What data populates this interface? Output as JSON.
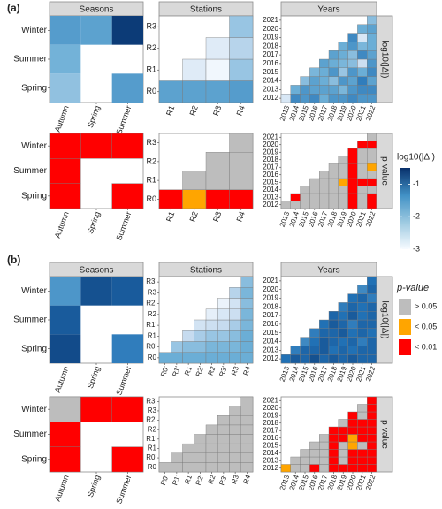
{
  "chart_data": {
    "type": "heatmap",
    "panel_labels": [
      "(a)",
      "(b)"
    ],
    "facet_titles": [
      "Seasons",
      "Stations",
      "Years"
    ],
    "strip_labels": [
      "log10(|Δ|)",
      "p-value"
    ],
    "legend_a": {
      "title": "log10(|Δ|)",
      "ticks": [
        "-1",
        "-2",
        "-3"
      ],
      "tick_values": [
        -1,
        -2,
        -3
      ],
      "range": [
        -3,
        -0.5
      ],
      "colors": [
        "#f7fbff",
        "#9ecae1",
        "#4292c6",
        "#08306b"
      ]
    },
    "legend_b": {
      "title": "p-value",
      "items": [
        {
          "label": "> 0.05",
          "color": "#bdbdbd"
        },
        {
          "label": "< 0.05",
          "color": "#ffa500"
        },
        {
          "label": "< 0.01",
          "color": "#ff0000"
        }
      ]
    },
    "panels": {
      "a": {
        "seasons": {
          "x": [
            "Autumn",
            "Spring",
            "Summer"
          ],
          "y": [
            "Spring",
            "Summer",
            "Winter"
          ],
          "log": [
            {
              "x": "Autumn",
              "y": "Winter",
              "v": -1.45
            },
            {
              "x": "Spring",
              "y": "Winter",
              "v": -1.5
            },
            {
              "x": "Summer",
              "y": "Winter",
              "v": -0.6
            },
            {
              "x": "Autumn",
              "y": "Summer",
              "v": -1.65
            },
            {
              "x": "Autumn",
              "y": "Spring",
              "v": -1.85
            },
            {
              "x": "Summer",
              "y": "Spring",
              "v": -1.45
            }
          ],
          "pval": [
            {
              "x": "Autumn",
              "y": "Winter",
              "p": "< 0.01"
            },
            {
              "x": "Spring",
              "y": "Winter",
              "p": "< 0.01"
            },
            {
              "x": "Summer",
              "y": "Winter",
              "p": "< 0.01"
            },
            {
              "x": "Autumn",
              "y": "Summer",
              "p": "< 0.01"
            },
            {
              "x": "Autumn",
              "y": "Spring",
              "p": "< 0.01"
            },
            {
              "x": "Summer",
              "y": "Spring",
              "p": "< 0.01"
            }
          ]
        },
        "stations": {
          "x": [
            "R1",
            "R2",
            "R3",
            "R4"
          ],
          "y": [
            "R0",
            "R1",
            "R2",
            "R3"
          ],
          "log": [
            {
              "x": "R1",
              "y": "R0",
              "v": -1.5
            },
            {
              "x": "R2",
              "y": "R0",
              "v": -1.5
            },
            {
              "x": "R3",
              "y": "R0",
              "v": -1.5
            },
            {
              "x": "R4",
              "y": "R0",
              "v": -1.45
            },
            {
              "x": "R2",
              "y": "R1",
              "v": -2.6
            },
            {
              "x": "R3",
              "y": "R1",
              "v": -2.9
            },
            {
              "x": "R4",
              "y": "R1",
              "v": -1.9
            },
            {
              "x": "R3",
              "y": "R2",
              "v": -2.6
            },
            {
              "x": "R4",
              "y": "R2",
              "v": -2.1
            },
            {
              "x": "R4",
              "y": "R3",
              "v": -1.9
            }
          ],
          "pval": [
            {
              "x": "R1",
              "y": "R0",
              "p": "< 0.01"
            },
            {
              "x": "R2",
              "y": "R0",
              "p": "< 0.05"
            },
            {
              "x": "R3",
              "y": "R0",
              "p": "< 0.01"
            },
            {
              "x": "R4",
              "y": "R0",
              "p": "< 0.01"
            },
            {
              "x": "R2",
              "y": "R1",
              "p": "> 0.05"
            },
            {
              "x": "R3",
              "y": "R1",
              "p": "> 0.05"
            },
            {
              "x": "R4",
              "y": "R1",
              "p": "> 0.05"
            },
            {
              "x": "R3",
              "y": "R2",
              "p": "> 0.05"
            },
            {
              "x": "R4",
              "y": "R2",
              "p": "> 0.05"
            },
            {
              "x": "R4",
              "y": "R3",
              "p": "> 0.05"
            }
          ]
        },
        "years": {
          "x": [
            "2013",
            "2014",
            "2015",
            "2016",
            "2017",
            "2018",
            "2019",
            "2020",
            "2021",
            "2022"
          ],
          "y": [
            "2012",
            "2013",
            "2014",
            "2015",
            "2016",
            "2017",
            "2018",
            "2019",
            "2020",
            "2021"
          ],
          "log_rows": [
            [
              -2.5,
              -1.3,
              -1.4,
              -1.3,
              -1.6,
              -1.4,
              -1.4,
              -1.3,
              -1.4,
              -1.4
            ],
            [
              null,
              -1.6,
              -1.4,
              -1.5,
              -1.5,
              -1.5,
              -1.7,
              -1.4,
              -1.3,
              -1.3
            ],
            [
              null,
              null,
              -1.8,
              -1.5,
              -1.6,
              -1.8,
              -1.4,
              -1.5,
              -1.2,
              -1.5
            ],
            [
              null,
              null,
              null,
              -1.7,
              -1.6,
              -1.4,
              -1.9,
              -1.4,
              -1.6,
              -1.3
            ],
            [
              null,
              null,
              null,
              null,
              -1.5,
              -1.6,
              -1.7,
              -1.8,
              -2.3,
              -1.4
            ],
            [
              null,
              null,
              null,
              null,
              null,
              -1.5,
              -1.6,
              -1.8,
              -1.3,
              -1.5
            ],
            [
              null,
              null,
              null,
              null,
              null,
              null,
              -1.6,
              -1.4,
              -1.7,
              -1.6
            ],
            [
              null,
              null,
              null,
              null,
              null,
              null,
              null,
              -1.3,
              -2.5,
              -1.6
            ],
            [
              null,
              null,
              null,
              null,
              null,
              null,
              null,
              null,
              -1.6,
              -1.5
            ],
            [
              null,
              null,
              null,
              null,
              null,
              null,
              null,
              null,
              null,
              -1.8
            ]
          ],
          "pval_rows": [
            [
              "> 0.05",
              "> 0.05",
              "> 0.05",
              "> 0.05",
              "> 0.05",
              "> 0.05",
              "> 0.05",
              "< 0.01",
              "> 0.05",
              "< 0.01"
            ],
            [
              null,
              "< 0.01",
              "> 0.05",
              "> 0.05",
              "> 0.05",
              "> 0.05",
              "> 0.05",
              "< 0.01",
              "> 0.05",
              "< 0.01"
            ],
            [
              null,
              null,
              "> 0.05",
              "> 0.05",
              "> 0.05",
              "> 0.05",
              "> 0.05",
              "< 0.01",
              "> 0.05",
              "> 0.05"
            ],
            [
              null,
              null,
              null,
              "> 0.05",
              "> 0.05",
              "> 0.05",
              "< 0.05",
              "< 0.01",
              "< 0.01",
              "< 0.01"
            ],
            [
              null,
              null,
              null,
              null,
              "> 0.05",
              "> 0.05",
              "> 0.05",
              "< 0.01",
              "> 0.05",
              "> 0.05"
            ],
            [
              null,
              null,
              null,
              null,
              null,
              "> 0.05",
              "> 0.05",
              "< 0.01",
              "> 0.05",
              "< 0.05"
            ],
            [
              null,
              null,
              null,
              null,
              null,
              null,
              "> 0.05",
              "< 0.01",
              "> 0.05",
              "> 0.05"
            ],
            [
              null,
              null,
              null,
              null,
              null,
              null,
              null,
              "< 0.01",
              "> 0.05",
              "> 0.05"
            ],
            [
              null,
              null,
              null,
              null,
              null,
              null,
              null,
              null,
              "< 0.01",
              "< 0.01"
            ],
            [
              null,
              null,
              null,
              null,
              null,
              null,
              null,
              null,
              null,
              "> 0.05"
            ]
          ]
        }
      },
      "b": {
        "seasons": {
          "x": [
            "Autumn",
            "Spring",
            "Summer"
          ],
          "y": [
            "Spring",
            "Summer",
            "Winter"
          ],
          "log": [
            {
              "x": "Autumn",
              "y": "Winter",
              "v": -1.4
            },
            {
              "x": "Spring",
              "y": "Winter",
              "v": -0.8
            },
            {
              "x": "Summer",
              "y": "Winter",
              "v": -0.9
            },
            {
              "x": "Autumn",
              "y": "Summer",
              "v": -0.9
            },
            {
              "x": "Autumn",
              "y": "Spring",
              "v": -0.75
            },
            {
              "x": "Summer",
              "y": "Spring",
              "v": -1.2
            }
          ],
          "pval": [
            {
              "x": "Autumn",
              "y": "Winter",
              "p": "> 0.05"
            },
            {
              "x": "Spring",
              "y": "Winter",
              "p": "< 0.01"
            },
            {
              "x": "Summer",
              "y": "Winter",
              "p": "< 0.01"
            },
            {
              "x": "Autumn",
              "y": "Summer",
              "p": "< 0.01"
            },
            {
              "x": "Autumn",
              "y": "Spring",
              "p": "< 0.01"
            },
            {
              "x": "Summer",
              "y": "Spring",
              "p": "< 0.01"
            }
          ]
        },
        "stations": {
          "x": [
            "R0'",
            "R1'",
            "R1",
            "R2'",
            "R2",
            "R3'",
            "R3",
            "R4"
          ],
          "y": [
            "R0",
            "R0'",
            "R1",
            "R1'",
            "R2",
            "R2'",
            "R3",
            "R3'"
          ],
          "log_rows": [
            [
              -1.6,
              -1.6,
              -1.6,
              -1.6,
              -1.6,
              -1.6,
              -1.6,
              -1.6
            ],
            [
              null,
              -1.9,
              -1.8,
              -1.8,
              -1.7,
              -1.7,
              -1.7,
              -1.6
            ],
            [
              null,
              null,
              -2.2,
              -2.0,
              -1.9,
              -1.9,
              -1.8,
              -1.6
            ],
            [
              null,
              null,
              null,
              -2.4,
              -2.3,
              -2.2,
              -2.0,
              -1.7
            ],
            [
              null,
              null,
              null,
              null,
              -2.7,
              -2.5,
              -2.3,
              -1.7
            ],
            [
              null,
              null,
              null,
              null,
              null,
              -2.8,
              -2.4,
              -1.8
            ],
            [
              null,
              null,
              null,
              null,
              null,
              null,
              -2.1,
              -1.7
            ],
            [
              null,
              null,
              null,
              null,
              null,
              null,
              null,
              -1.8
            ]
          ],
          "pval_all": "> 0.05"
        },
        "years": {
          "x": [
            "2013",
            "2014",
            "2015",
            "2016",
            "2017",
            "2018",
            "2019",
            "2020",
            "2021",
            "2022"
          ],
          "y": [
            "2012",
            "2013",
            "2014",
            "2015",
            "2016",
            "2017",
            "2018",
            "2019",
            "2020",
            "2021"
          ],
          "log_rows": [
            [
              -1.1,
              -0.9,
              -1.0,
              -0.8,
              -1.0,
              -0.9,
              -1.0,
              -0.9,
              -1.0,
              -1.0
            ],
            [
              null,
              -1.2,
              -1.0,
              -1.0,
              -0.9,
              -1.1,
              -1.0,
              -1.1,
              -1.0,
              -1.0
            ],
            [
              null,
              null,
              -1.3,
              -1.1,
              -0.9,
              -1.0,
              -1.1,
              -1.0,
              -1.2,
              -1.0
            ],
            [
              null,
              null,
              null,
              -1.2,
              -1.0,
              -1.0,
              -0.9,
              -1.1,
              -1.0,
              -1.1
            ],
            [
              null,
              null,
              null,
              null,
              -1.1,
              -0.9,
              -1.0,
              -1.2,
              -1.0,
              -1.0
            ],
            [
              null,
              null,
              null,
              null,
              null,
              -1.0,
              -1.1,
              -0.9,
              -1.1,
              -1.0
            ],
            [
              null,
              null,
              null,
              null,
              null,
              null,
              -1.2,
              -1.0,
              -1.1,
              -1.0
            ],
            [
              null,
              null,
              null,
              null,
              null,
              null,
              null,
              -1.1,
              -1.0,
              -1.2
            ],
            [
              null,
              null,
              null,
              null,
              null,
              null,
              null,
              null,
              -1.3,
              -1.0
            ],
            [
              null,
              null,
              null,
              null,
              null,
              null,
              null,
              null,
              null,
              -1.1
            ]
          ],
          "pval_rows": [
            [
              "< 0.05",
              "> 0.05",
              "> 0.05",
              "< 0.01",
              "> 0.05",
              "< 0.01",
              "< 0.01",
              "< 0.01",
              "< 0.01",
              "< 0.01"
            ],
            [
              null,
              "> 0.05",
              "> 0.05",
              "> 0.05",
              "> 0.05",
              "< 0.01",
              "> 0.05",
              "< 0.01",
              "< 0.01",
              "< 0.01"
            ],
            [
              null,
              null,
              "> 0.05",
              "> 0.05",
              "> 0.05",
              "< 0.01",
              "> 0.05",
              "< 0.01",
              "< 0.01",
              "< 0.01"
            ],
            [
              null,
              null,
              null,
              "> 0.05",
              "> 0.05",
              "< 0.01",
              "> 0.05",
              "< 0.05",
              "> 0.05",
              "< 0.01"
            ],
            [
              null,
              null,
              null,
              null,
              "> 0.05",
              "< 0.01",
              "< 0.01",
              "< 0.05",
              "< 0.01",
              "< 0.01"
            ],
            [
              null,
              null,
              null,
              null,
              null,
              "< 0.01",
              "< 0.01",
              "< 0.01",
              "< 0.01",
              "< 0.01"
            ],
            [
              null,
              null,
              null,
              null,
              null,
              null,
              "> 0.05",
              "< 0.01",
              "< 0.01",
              "< 0.01"
            ],
            [
              null,
              null,
              null,
              null,
              null,
              null,
              null,
              "< 0.01",
              "> 0.05",
              "< 0.01"
            ],
            [
              null,
              null,
              null,
              null,
              null,
              null,
              null,
              null,
              "> 0.05",
              "< 0.01"
            ],
            [
              null,
              null,
              null,
              null,
              null,
              null,
              null,
              null,
              null,
              "< 0.01"
            ]
          ]
        }
      }
    }
  }
}
